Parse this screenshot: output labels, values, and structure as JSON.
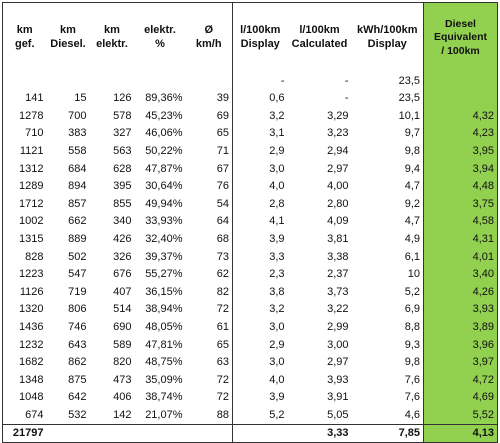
{
  "headers": [
    [
      "km",
      "gef."
    ],
    [
      "km",
      "Diesel."
    ],
    [
      "km",
      "elektr."
    ],
    [
      "elektr.",
      "%"
    ],
    [
      "Ø",
      "km/h"
    ],
    [
      "l/100km",
      "Display"
    ],
    [
      "l/100km",
      "Calculated"
    ],
    [
      "kWh/100km",
      "Display"
    ],
    [
      "Diesel",
      "Equivalent",
      "/ 100km"
    ]
  ],
  "subrow": [
    "",
    "",
    "",
    "",
    "",
    "-",
    "-",
    "23,5",
    ""
  ],
  "rows": [
    [
      "141",
      "15",
      "126",
      "89,36%",
      "39",
      "0,6",
      "-",
      "23,5",
      ""
    ],
    [
      "1278",
      "700",
      "578",
      "45,23%",
      "69",
      "3,2",
      "3,29",
      "10,1",
      "4,32"
    ],
    [
      "710",
      "383",
      "327",
      "46,06%",
      "65",
      "3,1",
      "3,23",
      "9,7",
      "4,23"
    ],
    [
      "1121",
      "558",
      "563",
      "50,22%",
      "71",
      "2,9",
      "2,94",
      "9,8",
      "3,95"
    ],
    [
      "1312",
      "684",
      "628",
      "47,87%",
      "67",
      "3,0",
      "2,97",
      "9,4",
      "3,94"
    ],
    [
      "1289",
      "894",
      "395",
      "30,64%",
      "76",
      "4,0",
      "4,00",
      "4,7",
      "4,48"
    ],
    [
      "1712",
      "857",
      "855",
      "49,94%",
      "54",
      "2,8",
      "2,80",
      "9,2",
      "3,75"
    ],
    [
      "1002",
      "662",
      "340",
      "33,93%",
      "64",
      "4,1",
      "4,09",
      "4,7",
      "4,58"
    ],
    [
      "1315",
      "889",
      "426",
      "32,40%",
      "68",
      "3,9",
      "3,81",
      "4,9",
      "4,31"
    ],
    [
      "828",
      "502",
      "326",
      "39,37%",
      "73",
      "3,3",
      "3,38",
      "6,1",
      "4,01"
    ],
    [
      "1223",
      "547",
      "676",
      "55,27%",
      "62",
      "2,3",
      "2,37",
      "10",
      "3,40"
    ],
    [
      "1126",
      "719",
      "407",
      "36,15%",
      "82",
      "3,8",
      "3,73",
      "5,2",
      "4,26"
    ],
    [
      "1320",
      "806",
      "514",
      "38,94%",
      "72",
      "3,2",
      "3,22",
      "6,9",
      "3,93"
    ],
    [
      "1436",
      "746",
      "690",
      "48,05%",
      "61",
      "3,0",
      "2,99",
      "8,8",
      "3,89"
    ],
    [
      "1232",
      "643",
      "589",
      "47,81%",
      "65",
      "2,9",
      "3,00",
      "9,3",
      "3,96"
    ],
    [
      "1682",
      "862",
      "820",
      "48,75%",
      "63",
      "3,0",
      "2,97",
      "9,8",
      "3,97"
    ],
    [
      "1348",
      "875",
      "473",
      "35,09%",
      "72",
      "4,0",
      "3,93",
      "7,6",
      "4,72"
    ],
    [
      "1048",
      "642",
      "406",
      "38,74%",
      "72",
      "3,9",
      "3,91",
      "7,6",
      "4,69"
    ],
    [
      "674",
      "532",
      "142",
      "21,07%",
      "88",
      "5,2",
      "5,05",
      "4,6",
      "5,52"
    ]
  ],
  "total": [
    "21797",
    "",
    "",
    "",
    "",
    "",
    "3,33",
    "7,85",
    "4,13"
  ],
  "colors": {
    "highlight": "#92d050",
    "border": "#333333"
  }
}
